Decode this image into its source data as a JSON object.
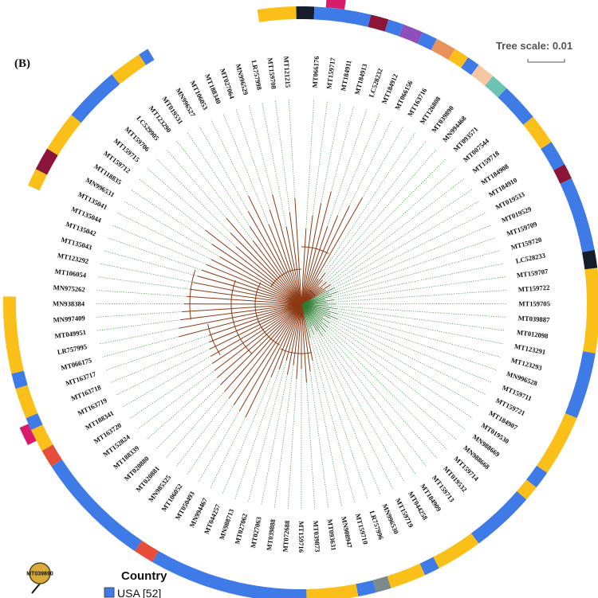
{
  "panel_label": "(B)",
  "tree_scale": {
    "label": "Tree scale: 0.01"
  },
  "colors": {
    "usa": "#3f7be6",
    "yellow": "#fbbf1a",
    "black": "#171c2b",
    "maroon": "#8a1538",
    "purple": "#8e4fbd",
    "orange": "#e8915a",
    "peach": "#f6c7a3",
    "teal": "#6cc4b3",
    "red": "#e64e3c",
    "gray": "#7b8a8c",
    "magenta": "#d81b6a",
    "branch_brown": "#8b3a14",
    "branch_green": "#2e7d32",
    "dotted": "#3a8a3a"
  },
  "leaves": [
    "MT066176",
    "MT159717",
    "MT184911",
    "MT184913",
    "LC528232",
    "MT184912",
    "MT066156",
    "MT163716",
    "MT126808",
    "MT039890",
    "MN994468",
    "MT093571",
    "MT007544",
    "MT159718",
    "MT184908",
    "MT184910",
    "MT019533",
    "MT019529",
    "MT159709",
    "MT159720",
    "LC528233",
    "MT159707",
    "MT159722",
    "MT159705",
    "MT039887",
    "MT012098",
    "MT123291",
    "MT123293",
    "MN996528",
    "MT159711",
    "MT159721",
    "MT184907",
    "MT019530",
    "MN988669",
    "MN988668",
    "MT159714",
    "MT019532",
    "MT159713",
    "MT184909",
    "MT044258",
    "MT159719",
    "MN996530",
    "LR757996",
    "MT159710",
    "MN908947",
    "MT093631",
    "MT039873",
    "MT159716",
    "MT072688",
    "MT039888",
    "MT027063",
    "MT027062",
    "MN988713",
    "MT044257",
    "MN994467",
    "MT050493",
    "MT106052",
    "MN985325",
    "MT020881",
    "MT020880",
    "MT188339",
    "MT152824",
    "MT163720",
    "MT188341",
    "MT163719",
    "MT163718",
    "MT163717",
    "MT066175",
    "LR757995",
    "MT049951",
    "MN997409",
    "MN938384",
    "MN975262",
    "MT106054",
    "MT123292",
    "MT135043",
    "MT135042",
    "MT135044",
    "MT135041",
    "MN996531",
    "MT118835",
    "MT159712",
    "MT159715",
    "MT159706",
    "LC529905",
    "MT123290",
    "MT019531",
    "MN996527",
    "MT106053",
    "MT188340",
    "MT027064",
    "MN996529",
    "LR757998",
    "MT159708",
    "MT121215"
  ],
  "ring": [
    [
      "yellow",
      7.5
    ],
    [
      "black",
      3.5
    ],
    [
      "usa",
      11
    ],
    [
      "maroon",
      3.5
    ],
    [
      "usa",
      3
    ],
    [
      "purple",
      4
    ],
    [
      "usa",
      3
    ],
    [
      "orange",
      4
    ],
    [
      "yellow",
      3
    ],
    [
      "usa",
      2.5
    ],
    [
      "peach",
      3.5
    ],
    [
      "teal",
      3.5
    ],
    [
      "usa",
      7.5
    ],
    [
      "yellow",
      6
    ],
    [
      "usa",
      5
    ],
    [
      "maroon",
      3
    ],
    [
      "usa",
      14.5
    ],
    [
      "black",
      3.5
    ],
    [
      "yellow",
      16.5
    ],
    [
      "usa",
      13
    ],
    [
      "yellow",
      12
    ],
    [
      "usa",
      3.5
    ],
    [
      "yellow",
      3
    ],
    [
      "usa",
      12.5
    ],
    [
      "yellow",
      9
    ],
    [
      "usa",
      3
    ],
    [
      "yellow",
      7
    ],
    [
      "gray",
      3
    ],
    [
      "usa",
      3.5
    ],
    [
      "yellow",
      10
    ],
    [
      "usa",
      31
    ],
    [
      "red",
      4
    ],
    [
      "usa",
      23
    ],
    [
      "red",
      3.5
    ],
    [
      "yellow",
      4.5
    ],
    [
      "usa",
      2.5
    ],
    [
      "yellow",
      6
    ],
    [
      "usa",
      3
    ],
    [
      "yellow",
      15
    ],
    [
      "gap",
      22
    ],
    [
      "yellow",
      3.5
    ],
    [
      "maroon",
      4.5
    ],
    [
      "yellow",
      8
    ],
    [
      "usa",
      11
    ],
    [
      "yellow",
      6.5
    ],
    [
      "usa",
      2
    ]
  ],
  "magenta_tabs": [
    {
      "angle": 6.5
    },
    {
      "angle": 244.5
    }
  ],
  "legend": {
    "title": "Country",
    "items": [
      {
        "label": "USA [52]",
        "color": "usa"
      }
    ]
  },
  "root_node": {
    "label": "MT039890"
  }
}
